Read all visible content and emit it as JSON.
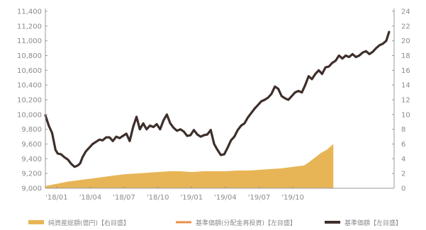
{
  "chart_data": {
    "type": "line",
    "x_categories": [
      "'18/01",
      "'18/04",
      "'18/07",
      "'18/10",
      "'19/01",
      "'19/04",
      "'19/07",
      "'19/10"
    ],
    "y_left": {
      "min": 9000,
      "max": 11400,
      "step": 200,
      "tick_labels": [
        "9,000",
        "9,200",
        "9,400",
        "9,600",
        "9,800",
        "10,000",
        "10,200",
        "10,400",
        "10,600",
        "10,800",
        "11,000",
        "11,200",
        "11,400"
      ]
    },
    "y_right": {
      "min": 0,
      "max": 24,
      "step": 2,
      "tick_labels": [
        "0",
        "2",
        "4",
        "6",
        "8",
        "10",
        "12",
        "14",
        "16",
        "18",
        "20",
        "22",
        "24"
      ]
    },
    "grid": false,
    "legend_position": "bottom",
    "colors": {
      "area": "#e8b556",
      "distribution_line": "#e8904a",
      "nav_line": "#3d2f2a",
      "axis": "#9a9a9a"
    },
    "series": [
      {
        "name": "純資産総額(億円)【右目盛】",
        "kind": "area",
        "axis": "right",
        "values": [
          [
            0,
            0.3
          ],
          [
            1,
            0.6
          ],
          [
            2,
            0.9
          ],
          [
            3,
            1.1
          ],
          [
            4,
            1.3
          ],
          [
            5,
            1.5
          ],
          [
            6,
            1.7
          ],
          [
            7,
            1.9
          ],
          [
            8,
            2.0
          ],
          [
            9,
            2.1
          ],
          [
            10,
            2.2
          ],
          [
            11,
            2.3
          ],
          [
            12,
            2.3
          ],
          [
            13,
            2.2
          ],
          [
            14,
            2.3
          ],
          [
            15,
            2.3
          ],
          [
            16,
            2.3
          ],
          [
            17,
            2.4
          ],
          [
            18,
            2.4
          ],
          [
            19,
            2.5
          ],
          [
            20,
            2.6
          ],
          [
            21,
            2.7
          ],
          [
            22,
            2.9
          ],
          [
            23,
            3.1
          ],
          [
            23.4,
            3.5
          ],
          [
            24,
            4.2
          ],
          [
            24.5,
            4.8
          ],
          [
            25,
            5.2
          ],
          [
            25.6,
            6.0
          ]
        ]
      },
      {
        "name": "基準価額(分配金再投資)【左目盛】",
        "kind": "line",
        "axis": "left",
        "values": []
      },
      {
        "name": "基準価額【左目盛】",
        "kind": "line",
        "axis": "left",
        "values": [
          [
            0,
            9990
          ],
          [
            0.3,
            9850
          ],
          [
            0.6,
            9750
          ],
          [
            0.9,
            9520
          ],
          [
            1.1,
            9470
          ],
          [
            1.4,
            9460
          ],
          [
            1.7,
            9420
          ],
          [
            2.0,
            9390
          ],
          [
            2.3,
            9330
          ],
          [
            2.6,
            9290
          ],
          [
            2.9,
            9310
          ],
          [
            3.1,
            9340
          ],
          [
            3.3,
            9420
          ],
          [
            3.6,
            9500
          ],
          [
            3.9,
            9550
          ],
          [
            4.2,
            9600
          ],
          [
            4.5,
            9630
          ],
          [
            4.8,
            9660
          ],
          [
            5.1,
            9650
          ],
          [
            5.4,
            9690
          ],
          [
            5.7,
            9690
          ],
          [
            6.0,
            9640
          ],
          [
            6.3,
            9700
          ],
          [
            6.6,
            9680
          ],
          [
            6.9,
            9710
          ],
          [
            7.2,
            9740
          ],
          [
            7.5,
            9640
          ],
          [
            7.8,
            9830
          ],
          [
            8.1,
            9970
          ],
          [
            8.4,
            9800
          ],
          [
            8.7,
            9880
          ],
          [
            9.0,
            9800
          ],
          [
            9.3,
            9850
          ],
          [
            9.6,
            9830
          ],
          [
            9.9,
            9870
          ],
          [
            10.2,
            9800
          ],
          [
            10.5,
            9920
          ],
          [
            10.8,
            10000
          ],
          [
            11.1,
            9880
          ],
          [
            11.4,
            9820
          ],
          [
            11.7,
            9780
          ],
          [
            12.0,
            9800
          ],
          [
            12.3,
            9770
          ],
          [
            12.6,
            9710
          ],
          [
            12.9,
            9720
          ],
          [
            13.2,
            9790
          ],
          [
            13.5,
            9730
          ],
          [
            13.8,
            9700
          ],
          [
            14.1,
            9720
          ],
          [
            14.4,
            9730
          ],
          [
            14.7,
            9790
          ],
          [
            15.0,
            9600
          ],
          [
            15.3,
            9520
          ],
          [
            15.6,
            9450
          ],
          [
            15.9,
            9460
          ],
          [
            16.2,
            9550
          ],
          [
            16.5,
            9650
          ],
          [
            16.8,
            9700
          ],
          [
            17.1,
            9790
          ],
          [
            17.4,
            9850
          ],
          [
            17.7,
            9880
          ],
          [
            18.0,
            9960
          ],
          [
            18.3,
            10020
          ],
          [
            18.6,
            10080
          ],
          [
            18.9,
            10130
          ],
          [
            19.2,
            10180
          ],
          [
            19.5,
            10200
          ],
          [
            19.8,
            10230
          ],
          [
            20.1,
            10280
          ],
          [
            20.4,
            10380
          ],
          [
            20.7,
            10350
          ],
          [
            21.0,
            10250
          ],
          [
            21.3,
            10220
          ],
          [
            21.6,
            10200
          ],
          [
            21.9,
            10250
          ],
          [
            22.2,
            10300
          ],
          [
            22.5,
            10320
          ],
          [
            22.8,
            10300
          ],
          [
            23.1,
            10400
          ],
          [
            23.4,
            10520
          ],
          [
            23.7,
            10480
          ],
          [
            24.0,
            10550
          ],
          [
            24.3,
            10600
          ],
          [
            24.6,
            10550
          ],
          [
            24.9,
            10640
          ],
          [
            25.2,
            10650
          ],
          [
            25.5,
            10700
          ],
          [
            25.8,
            10730
          ],
          [
            26.1,
            10800
          ],
          [
            26.4,
            10760
          ],
          [
            26.7,
            10800
          ],
          [
            27.0,
            10780
          ],
          [
            27.3,
            10820
          ],
          [
            27.6,
            10780
          ],
          [
            27.9,
            10800
          ],
          [
            28.2,
            10840
          ],
          [
            28.5,
            10860
          ],
          [
            28.8,
            10820
          ],
          [
            29.1,
            10850
          ],
          [
            29.4,
            10900
          ],
          [
            29.7,
            10940
          ],
          [
            30.0,
            10960
          ],
          [
            30.3,
            11000
          ],
          [
            30.55,
            11120
          ]
        ]
      }
    ]
  }
}
